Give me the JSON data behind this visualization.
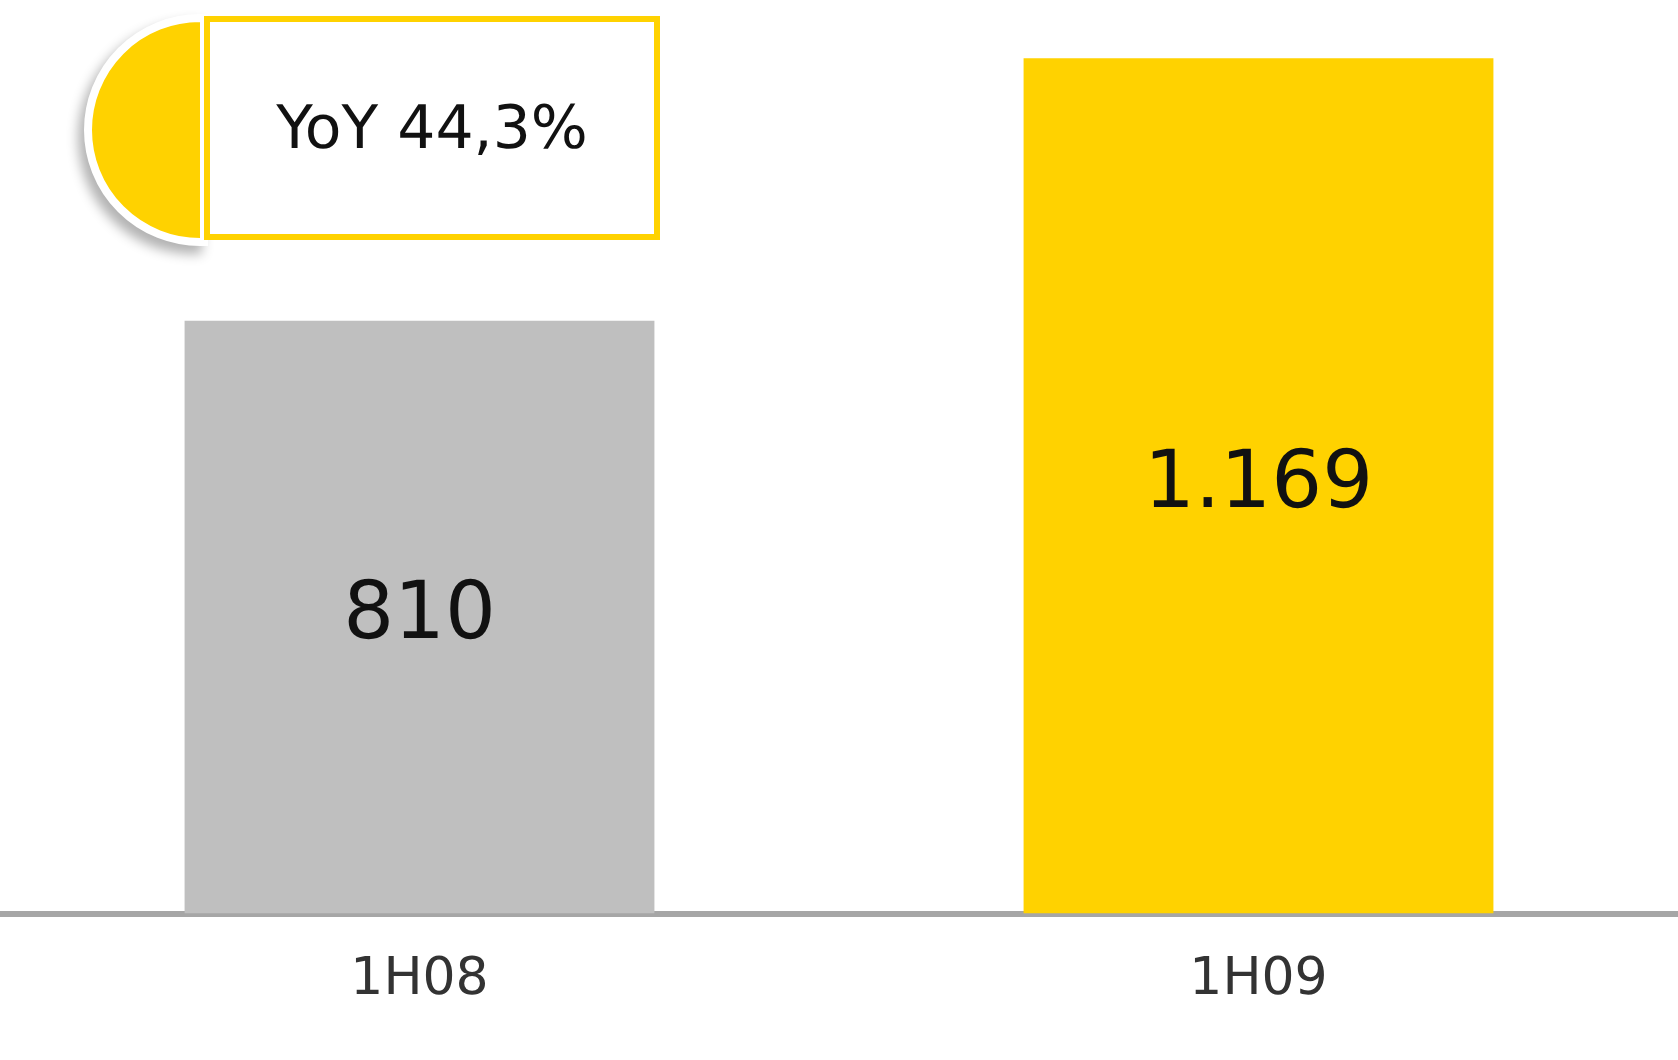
{
  "chart_data": {
    "type": "bar",
    "categories": [
      "1H08",
      "1H09"
    ],
    "values": [
      810,
      1169
    ],
    "colors": [
      "#bfbfbf",
      "#ffd200"
    ],
    "value_labels": [
      "810",
      "1.169"
    ],
    "annotations": [
      "YoY 44,3%"
    ],
    "legend": false,
    "grid": false
  }
}
